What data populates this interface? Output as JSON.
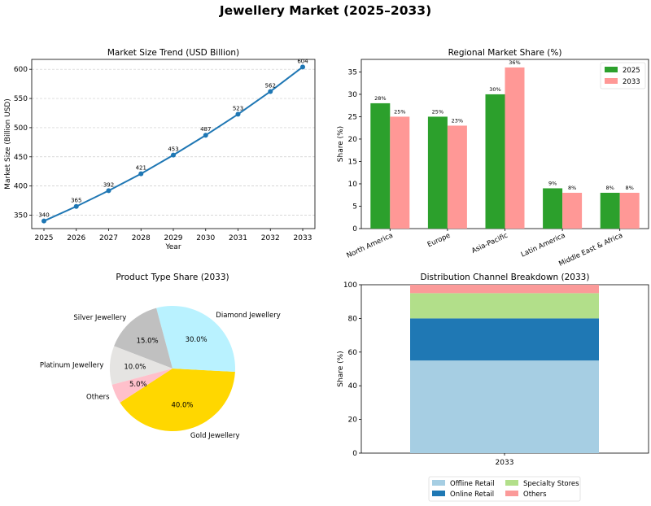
{
  "title": "Jewellery Market (2025–2033)",
  "chart_data": [
    {
      "type": "line",
      "title": "Market Size Trend (USD Billion)",
      "xlabel": "Year",
      "ylabel": "Market Size (Billion USD)",
      "x": [
        "2025",
        "2026",
        "2027",
        "2028",
        "2029",
        "2030",
        "2031",
        "2032",
        "2033"
      ],
      "values": [
        340,
        365,
        392,
        421,
        453,
        487,
        523,
        562,
        604
      ],
      "yticks": [
        350,
        400,
        450,
        500,
        550,
        600
      ],
      "ylim": [
        327,
        617
      ],
      "grid": "y-dashed",
      "color": "#1f77b4"
    },
    {
      "type": "bar",
      "title": "Regional Market Share (%)",
      "xlabel": "",
      "ylabel": "Share (%)",
      "categories": [
        "North America",
        "Europe",
        "Asia-Pacific",
        "Latin America",
        "Middle East & Africa"
      ],
      "series": [
        {
          "name": "2025",
          "values": [
            28,
            25,
            30,
            9,
            8
          ],
          "color": "#2ca02c"
        },
        {
          "name": "2033",
          "values": [
            25,
            23,
            36,
            8,
            8
          ],
          "color": "#ff9896"
        }
      ],
      "yticks": [
        0,
        5,
        10,
        15,
        20,
        25,
        30,
        35
      ],
      "ylim": [
        0,
        37.8
      ],
      "legend": "top-right"
    },
    {
      "type": "pie",
      "title": "Product Type Share (2033)",
      "slices": [
        {
          "label": "Gold Jewellery",
          "value": 40.0,
          "pct": "40.0%",
          "color": "#ffd700"
        },
        {
          "label": "Diamond Jewellery",
          "value": 30.0,
          "pct": "30.0%",
          "color": "#b9f2ff"
        },
        {
          "label": "Silver Jewellery",
          "value": 15.0,
          "pct": "15.0%",
          "color": "#c0c0c0"
        },
        {
          "label": "Platinum Jewellery",
          "value": 10.0,
          "pct": "10.0%",
          "color": "#e5e4e2"
        },
        {
          "label": "Others",
          "value": 5.0,
          "pct": "5.0%",
          "color": "#ffc0cb"
        }
      ]
    },
    {
      "type": "bar",
      "stacked": true,
      "title": "Distribution Channel Breakdown (2033)",
      "xlabel": "",
      "ylabel": "Share (%)",
      "categories": [
        "2033"
      ],
      "series": [
        {
          "name": "Offline Retail",
          "values": [
            55
          ],
          "color": "#a6cee3"
        },
        {
          "name": "Online Retail",
          "values": [
            25
          ],
          "color": "#1f78b4"
        },
        {
          "name": "Specialty Stores",
          "values": [
            15
          ],
          "color": "#b2df8a"
        },
        {
          "name": "Others",
          "values": [
            5
          ],
          "color": "#fb9a99"
        }
      ],
      "yticks": [
        0,
        20,
        40,
        60,
        80,
        100
      ],
      "ylim": [
        0,
        100
      ],
      "legend": "bottom-center"
    }
  ]
}
